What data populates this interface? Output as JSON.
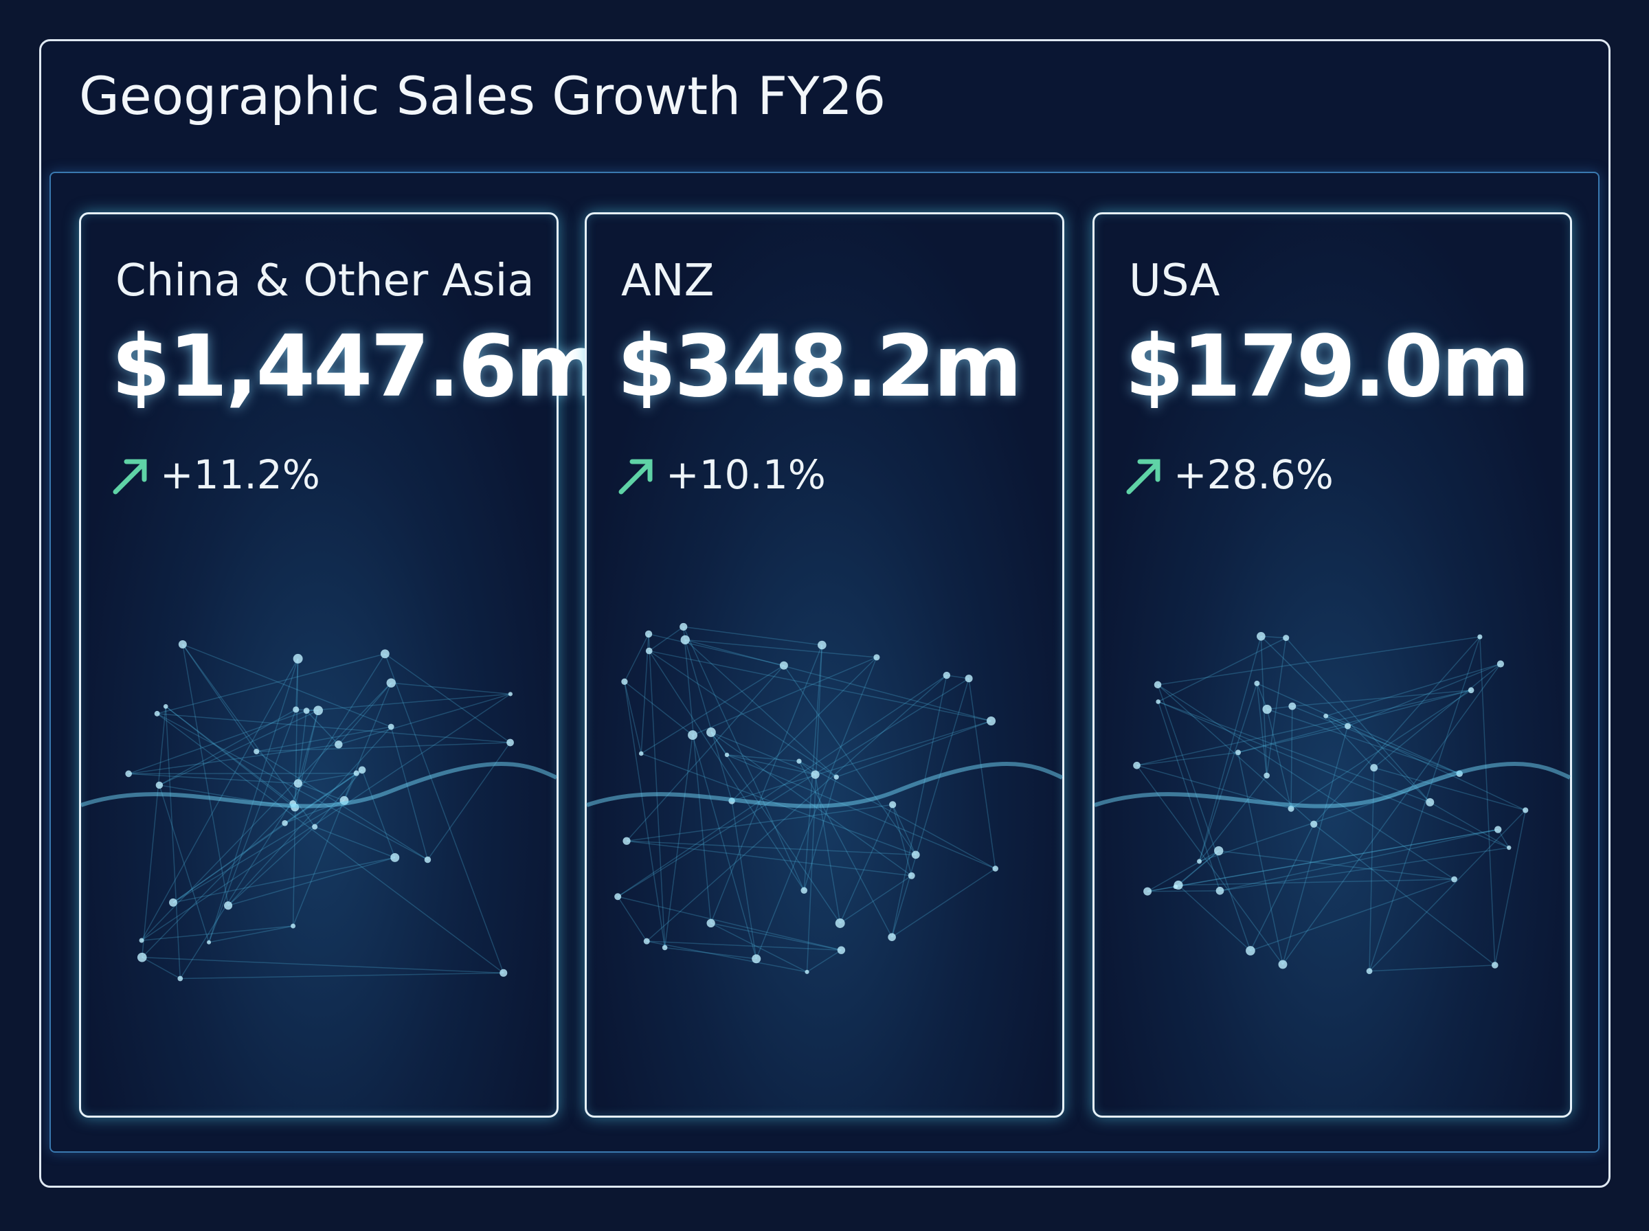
{
  "header": {
    "title": "Geographic Sales Growth FY26"
  },
  "cards": [
    {
      "region": "China & Other Asia",
      "value": "$1,447.6m",
      "change": "+11.2%"
    },
    {
      "region": "ANZ",
      "value": "$348.2m",
      "change": "+10.1%"
    },
    {
      "region": "USA",
      "value": "$179.0m",
      "change": "+28.6%"
    }
  ]
}
